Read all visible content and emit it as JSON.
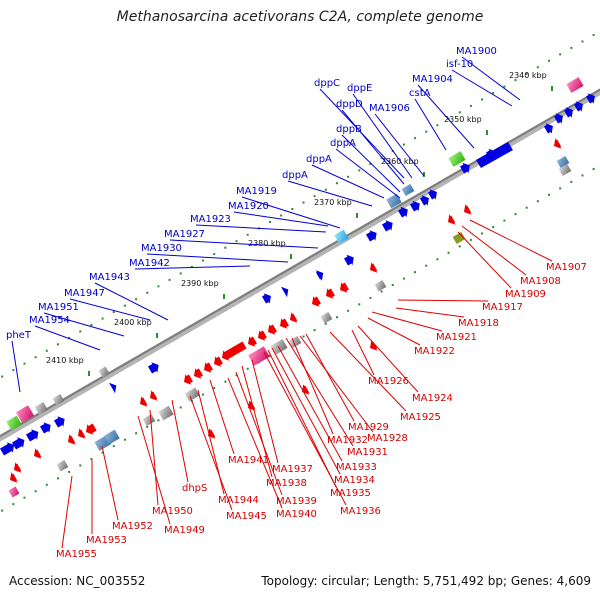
{
  "title": "Methanosarcina acetivorans C2A, complete genome",
  "accession": "Accession: NC_003552",
  "stats": "Topology: circular; Length: 5,751,492 bp; Genes: 4,609",
  "kbp_labels": [
    "2340 kbp",
    "2350 kbp",
    "2360 kbp",
    "2370 kbp",
    "2380 kbp",
    "2390 kbp",
    "2400 kbp",
    "2410 kbp"
  ],
  "forward_genes": [
    "MA1900",
    "isf-10",
    "MA1904",
    "cstA",
    "dppC",
    "dppE",
    "dppD",
    "MA1906",
    "dppB",
    "dppA",
    "dppA",
    "dppA",
    "MA1919",
    "MA1920",
    "MA1923",
    "MA1927",
    "MA1930",
    "MA1942",
    "MA1943",
    "MA1947",
    "MA1951",
    "MA1954",
    "pheT"
  ],
  "reverse_genes": [
    "MA1907",
    "MA1908",
    "MA1909",
    "MA1917",
    "MA1918",
    "MA1921",
    "MA1922",
    "MA1926",
    "MA1924",
    "MA1925",
    "MA1929",
    "MA1928",
    "MA1932",
    "MA1931",
    "MA1933",
    "MA1934",
    "MA1935",
    "MA1936",
    "MA1937",
    "MA1938",
    "MA1939",
    "MA1940",
    "MA1941",
    "MA1944",
    "MA1945",
    "dhpS",
    "MA1950",
    "MA1949",
    "MA1952",
    "MA1953",
    "MA1955"
  ],
  "colors": {
    "forward": "#0000e0",
    "reverse": "#ee0000",
    "backbone": "#8a8a8a",
    "tick": "#2e8b2e",
    "pink": "#e0207a",
    "green": "#44cc22",
    "cyan": "#33bbee",
    "gray": "#888888",
    "olive": "#8a9a20"
  }
}
